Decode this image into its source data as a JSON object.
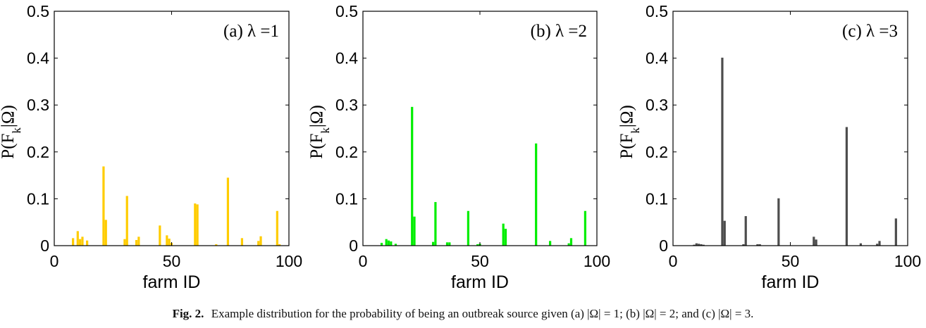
{
  "caption": {
    "label": "Fig. 2.",
    "text": "Example distribution for the probability of being an outbreak source given (a) |Ω| = 1; (b) |Ω| = 2; and (c) |Ω| = 3."
  },
  "chart_data": [
    {
      "type": "bar",
      "panel_label": "(a) λ =1",
      "xlabel": "farm ID",
      "ylabel": "P(F_k|Ω)",
      "xlim": [
        0,
        100
      ],
      "ylim": [
        0,
        0.5
      ],
      "xticks": [
        0,
        50,
        100
      ],
      "yticks": [
        0,
        0.1,
        0.2,
        0.3,
        0.4,
        0.5
      ],
      "grid": false,
      "color": "#ffcc00",
      "x": [
        8,
        10,
        11,
        12,
        14,
        21,
        22,
        30,
        31,
        35,
        36,
        45,
        48,
        49,
        50,
        60,
        61,
        69,
        74,
        80,
        87,
        88,
        95,
        96
      ],
      "values": [
        0.016,
        0.031,
        0.014,
        0.019,
        0.011,
        0.169,
        0.055,
        0.014,
        0.106,
        0.012,
        0.019,
        0.043,
        0.022,
        0.015,
        0.006,
        0.09,
        0.088,
        0.003,
        0.145,
        0.016,
        0.01,
        0.02,
        0.074,
        0.003
      ]
    },
    {
      "type": "bar",
      "panel_label": "(b) λ =2",
      "xlabel": "farm ID",
      "ylabel": "P(F_k|Ω)",
      "xlim": [
        0,
        100
      ],
      "ylim": [
        0,
        0.5
      ],
      "xticks": [
        0,
        50,
        100
      ],
      "yticks": [
        0,
        0.1,
        0.2,
        0.3,
        0.4,
        0.5
      ],
      "grid": false,
      "color": "#00ee00",
      "x": [
        8,
        10,
        11,
        12,
        14,
        21,
        22,
        30,
        31,
        36,
        37,
        45,
        49,
        50,
        60,
        61,
        74,
        80,
        88,
        89,
        95
      ],
      "values": [
        0.006,
        0.014,
        0.011,
        0.009,
        0.004,
        0.296,
        0.062,
        0.008,
        0.093,
        0.007,
        0.007,
        0.074,
        0.003,
        0.004,
        0.047,
        0.036,
        0.218,
        0.01,
        0.005,
        0.016,
        0.074
      ]
    },
    {
      "type": "bar",
      "panel_label": "(c) λ =3",
      "xlabel": "farm ID",
      "ylabel": "P(F_k|Ω)",
      "xlim": [
        0,
        100
      ],
      "ylim": [
        0,
        0.5
      ],
      "xticks": [
        0,
        50,
        100
      ],
      "yticks": [
        0,
        0.1,
        0.2,
        0.3,
        0.4,
        0.5
      ],
      "grid": false,
      "color": "#4d4d4d",
      "x": [
        9,
        10,
        11,
        12,
        13,
        21,
        22,
        30,
        31,
        36,
        37,
        45,
        60,
        61,
        74,
        80,
        87,
        88,
        95
      ],
      "values": [
        0.002,
        0.005,
        0.004,
        0.003,
        0.002,
        0.401,
        0.053,
        0.003,
        0.063,
        0.003,
        0.003,
        0.101,
        0.019,
        0.013,
        0.253,
        0.005,
        0.004,
        0.01,
        0.058
      ]
    }
  ]
}
